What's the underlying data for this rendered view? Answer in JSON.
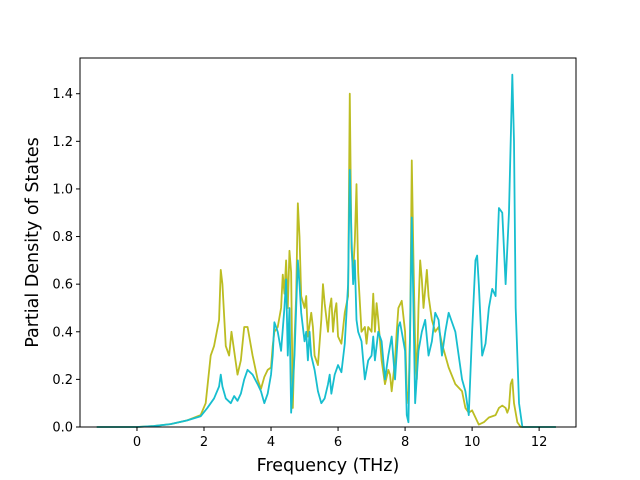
{
  "chart_data": {
    "type": "line",
    "title": "",
    "xlabel": "Frequency (THz)",
    "ylabel": "Partial Density of States",
    "xlim": [
      -1.7,
      13.1
    ],
    "ylim": [
      0.0,
      1.55
    ],
    "xticks": [
      0,
      2,
      4,
      6,
      8,
      10,
      12
    ],
    "yticks": [
      0.0,
      0.2,
      0.4,
      0.6,
      0.8,
      1.0,
      1.2,
      1.4
    ],
    "xtick_labels": [
      "0",
      "2",
      "4",
      "6",
      "8",
      "10",
      "12"
    ],
    "ytick_labels": [
      "0.0",
      "0.2",
      "0.4",
      "0.6",
      "0.8",
      "1.0",
      "1.2",
      "1.4"
    ],
    "grid": false,
    "legend": false,
    "series": [
      {
        "color": "#bcbd22",
        "points": [
          [
            -1.2,
            0.0
          ],
          [
            0.0,
            0.0
          ],
          [
            0.5,
            0.004
          ],
          [
            1.0,
            0.012
          ],
          [
            1.5,
            0.028
          ],
          [
            1.9,
            0.05
          ],
          [
            2.05,
            0.1
          ],
          [
            2.2,
            0.3
          ],
          [
            2.3,
            0.34
          ],
          [
            2.45,
            0.45
          ],
          [
            2.5,
            0.66
          ],
          [
            2.55,
            0.6
          ],
          [
            2.65,
            0.34
          ],
          [
            2.75,
            0.3
          ],
          [
            2.82,
            0.4
          ],
          [
            2.9,
            0.32
          ],
          [
            3.0,
            0.22
          ],
          [
            3.1,
            0.28
          ],
          [
            3.2,
            0.42
          ],
          [
            3.3,
            0.42
          ],
          [
            3.45,
            0.3
          ],
          [
            3.6,
            0.2
          ],
          [
            3.7,
            0.16
          ],
          [
            3.8,
            0.21
          ],
          [
            3.9,
            0.24
          ],
          [
            4.0,
            0.25
          ],
          [
            4.05,
            0.34
          ],
          [
            4.1,
            0.4
          ],
          [
            4.2,
            0.42
          ],
          [
            4.3,
            0.5
          ],
          [
            4.35,
            0.64
          ],
          [
            4.4,
            0.56
          ],
          [
            4.45,
            0.7
          ],
          [
            4.5,
            0.5
          ],
          [
            4.55,
            0.74
          ],
          [
            4.6,
            0.65
          ],
          [
            4.65,
            0.08
          ],
          [
            4.7,
            0.36
          ],
          [
            4.75,
            0.55
          ],
          [
            4.8,
            0.94
          ],
          [
            4.85,
            0.8
          ],
          [
            4.9,
            0.55
          ],
          [
            5.0,
            0.5
          ],
          [
            5.05,
            0.55
          ],
          [
            5.1,
            0.38
          ],
          [
            5.2,
            0.48
          ],
          [
            5.25,
            0.42
          ],
          [
            5.3,
            0.3
          ],
          [
            5.4,
            0.26
          ],
          [
            5.5,
            0.45
          ],
          [
            5.55,
            0.6
          ],
          [
            5.6,
            0.52
          ],
          [
            5.7,
            0.4
          ],
          [
            5.75,
            0.5
          ],
          [
            5.8,
            0.54
          ],
          [
            5.85,
            0.4
          ],
          [
            5.9,
            0.48
          ],
          [
            5.95,
            0.52
          ],
          [
            6.0,
            0.38
          ],
          [
            6.1,
            0.35
          ],
          [
            6.2,
            0.48
          ],
          [
            6.3,
            0.55
          ],
          [
            6.35,
            1.4
          ],
          [
            6.4,
            0.75
          ],
          [
            6.45,
            0.65
          ],
          [
            6.5,
            0.78
          ],
          [
            6.55,
            1.02
          ],
          [
            6.6,
            0.65
          ],
          [
            6.7,
            0.4
          ],
          [
            6.8,
            0.42
          ],
          [
            6.85,
            0.35
          ],
          [
            6.9,
            0.42
          ],
          [
            7.0,
            0.4
          ],
          [
            7.05,
            0.56
          ],
          [
            7.1,
            0.4
          ],
          [
            7.15,
            0.52
          ],
          [
            7.2,
            0.45
          ],
          [
            7.3,
            0.28
          ],
          [
            7.4,
            0.18
          ],
          [
            7.5,
            0.24
          ],
          [
            7.55,
            0.22
          ],
          [
            7.6,
            0.15
          ],
          [
            7.7,
            0.28
          ],
          [
            7.75,
            0.4
          ],
          [
            7.8,
            0.5
          ],
          [
            7.9,
            0.53
          ],
          [
            8.0,
            0.4
          ],
          [
            8.05,
            0.15
          ],
          [
            8.1,
            0.1
          ],
          [
            8.15,
            0.4
          ],
          [
            8.2,
            1.12
          ],
          [
            8.25,
            0.7
          ],
          [
            8.3,
            0.35
          ],
          [
            8.35,
            0.2
          ],
          [
            8.4,
            0.5
          ],
          [
            8.45,
            0.7
          ],
          [
            8.5,
            0.62
          ],
          [
            8.55,
            0.5
          ],
          [
            8.6,
            0.58
          ],
          [
            8.65,
            0.66
          ],
          [
            8.7,
            0.55
          ],
          [
            8.8,
            0.45
          ],
          [
            8.9,
            0.4
          ],
          [
            9.0,
            0.42
          ],
          [
            9.1,
            0.35
          ],
          [
            9.3,
            0.25
          ],
          [
            9.5,
            0.18
          ],
          [
            9.7,
            0.15
          ],
          [
            9.8,
            0.08
          ],
          [
            9.9,
            0.06
          ],
          [
            10.0,
            0.07
          ],
          [
            10.1,
            0.04
          ],
          [
            10.2,
            0.01
          ],
          [
            10.35,
            0.02
          ],
          [
            10.5,
            0.04
          ],
          [
            10.7,
            0.05
          ],
          [
            10.8,
            0.08
          ],
          [
            10.9,
            0.09
          ],
          [
            11.0,
            0.08
          ],
          [
            11.05,
            0.06
          ],
          [
            11.1,
            0.08
          ],
          [
            11.15,
            0.18
          ],
          [
            11.2,
            0.2
          ],
          [
            11.25,
            0.1
          ],
          [
            11.35,
            0.02
          ],
          [
            11.45,
            0.0
          ],
          [
            12.5,
            0.0
          ]
        ]
      },
      {
        "color": "#17becf",
        "points": [
          [
            -1.2,
            0.0
          ],
          [
            0.0,
            0.0
          ],
          [
            0.5,
            0.004
          ],
          [
            1.0,
            0.012
          ],
          [
            1.5,
            0.028
          ],
          [
            1.9,
            0.045
          ],
          [
            2.1,
            0.08
          ],
          [
            2.3,
            0.12
          ],
          [
            2.45,
            0.17
          ],
          [
            2.5,
            0.22
          ],
          [
            2.55,
            0.17
          ],
          [
            2.65,
            0.12
          ],
          [
            2.8,
            0.1
          ],
          [
            2.9,
            0.13
          ],
          [
            3.0,
            0.11
          ],
          [
            3.1,
            0.14
          ],
          [
            3.2,
            0.2
          ],
          [
            3.3,
            0.24
          ],
          [
            3.45,
            0.22
          ],
          [
            3.6,
            0.18
          ],
          [
            3.7,
            0.15
          ],
          [
            3.8,
            0.1
          ],
          [
            3.9,
            0.14
          ],
          [
            4.0,
            0.22
          ],
          [
            4.05,
            0.3
          ],
          [
            4.1,
            0.44
          ],
          [
            4.2,
            0.4
          ],
          [
            4.3,
            0.32
          ],
          [
            4.4,
            0.5
          ],
          [
            4.45,
            0.62
          ],
          [
            4.5,
            0.3
          ],
          [
            4.55,
            0.5
          ],
          [
            4.6,
            0.06
          ],
          [
            4.7,
            0.3
          ],
          [
            4.8,
            0.7
          ],
          [
            4.85,
            0.6
          ],
          [
            4.9,
            0.48
          ],
          [
            5.0,
            0.36
          ],
          [
            5.05,
            0.4
          ],
          [
            5.1,
            0.28
          ],
          [
            5.15,
            0.4
          ],
          [
            5.2,
            0.3
          ],
          [
            5.3,
            0.24
          ],
          [
            5.4,
            0.15
          ],
          [
            5.5,
            0.1
          ],
          [
            5.6,
            0.12
          ],
          [
            5.7,
            0.18
          ],
          [
            5.75,
            0.22
          ],
          [
            5.8,
            0.14
          ],
          [
            5.9,
            0.22
          ],
          [
            6.0,
            0.26
          ],
          [
            6.1,
            0.23
          ],
          [
            6.2,
            0.35
          ],
          [
            6.3,
            0.6
          ],
          [
            6.35,
            1.08
          ],
          [
            6.4,
            0.8
          ],
          [
            6.45,
            0.6
          ],
          [
            6.5,
            0.7
          ],
          [
            6.55,
            0.45
          ],
          [
            6.6,
            0.4
          ],
          [
            6.7,
            0.36
          ],
          [
            6.8,
            0.2
          ],
          [
            6.9,
            0.28
          ],
          [
            7.0,
            0.3
          ],
          [
            7.05,
            0.38
          ],
          [
            7.1,
            0.28
          ],
          [
            7.2,
            0.4
          ],
          [
            7.3,
            0.36
          ],
          [
            7.4,
            0.2
          ],
          [
            7.5,
            0.3
          ],
          [
            7.6,
            0.38
          ],
          [
            7.7,
            0.2
          ],
          [
            7.8,
            0.42
          ],
          [
            7.85,
            0.44
          ],
          [
            7.9,
            0.4
          ],
          [
            8.0,
            0.32
          ],
          [
            8.05,
            0.05
          ],
          [
            8.1,
            0.02
          ],
          [
            8.15,
            0.4
          ],
          [
            8.2,
            0.88
          ],
          [
            8.25,
            0.5
          ],
          [
            8.3,
            0.1
          ],
          [
            8.4,
            0.32
          ],
          [
            8.5,
            0.4
          ],
          [
            8.6,
            0.45
          ],
          [
            8.7,
            0.3
          ],
          [
            8.8,
            0.36
          ],
          [
            8.9,
            0.48
          ],
          [
            9.0,
            0.45
          ],
          [
            9.1,
            0.3
          ],
          [
            9.2,
            0.4
          ],
          [
            9.3,
            0.48
          ],
          [
            9.4,
            0.44
          ],
          [
            9.5,
            0.4
          ],
          [
            9.6,
            0.3
          ],
          [
            9.7,
            0.2
          ],
          [
            9.8,
            0.15
          ],
          [
            9.9,
            0.05
          ],
          [
            10.0,
            0.4
          ],
          [
            10.1,
            0.7
          ],
          [
            10.15,
            0.72
          ],
          [
            10.2,
            0.6
          ],
          [
            10.3,
            0.3
          ],
          [
            10.4,
            0.35
          ],
          [
            10.5,
            0.5
          ],
          [
            10.6,
            0.58
          ],
          [
            10.7,
            0.55
          ],
          [
            10.8,
            0.92
          ],
          [
            10.9,
            0.9
          ],
          [
            11.0,
            0.6
          ],
          [
            11.1,
            0.9
          ],
          [
            11.2,
            1.48
          ],
          [
            11.25,
            1.2
          ],
          [
            11.3,
            0.5
          ],
          [
            11.4,
            0.1
          ],
          [
            11.5,
            0.0
          ],
          [
            12.5,
            0.0
          ]
        ]
      }
    ]
  }
}
